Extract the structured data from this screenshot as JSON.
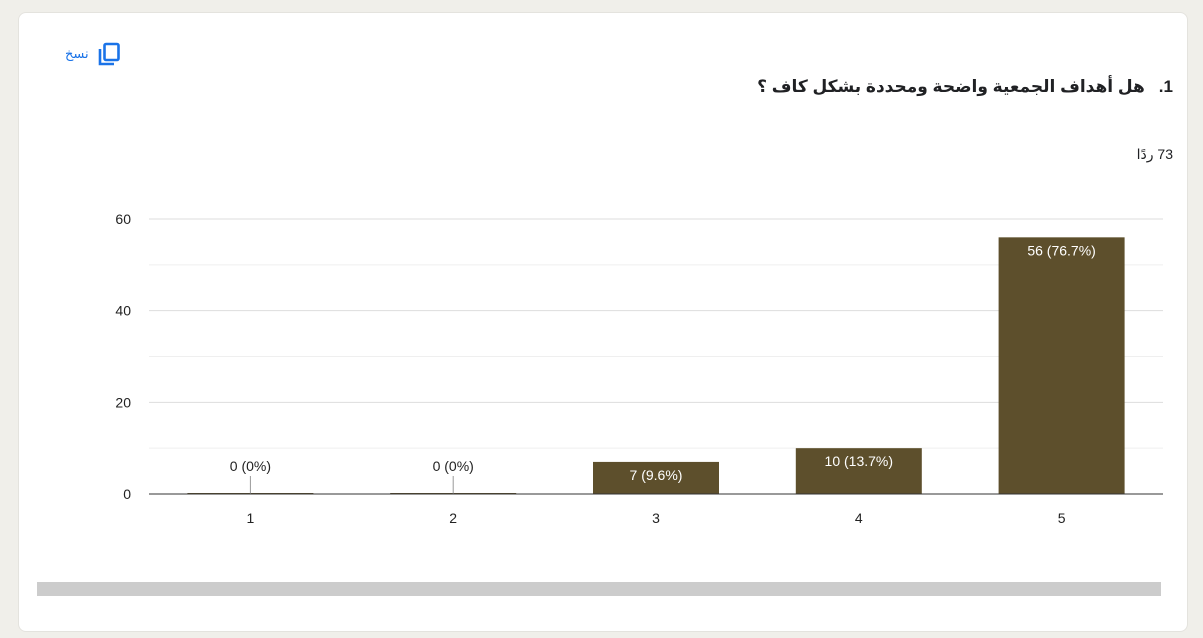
{
  "copy": {
    "label": "نسخ",
    "icon": "copy-icon",
    "color": "#1a73e8"
  },
  "question": {
    "number": "1.",
    "text": "هل أهداف الجمعية واضحة ومحددة بشكل كاف ؟"
  },
  "responses": {
    "count": "73",
    "label": "ردًا"
  },
  "chart_data": {
    "type": "bar",
    "categories": [
      "1",
      "2",
      "3",
      "4",
      "5"
    ],
    "values": [
      0,
      0,
      7,
      10,
      56
    ],
    "data_labels": [
      "0 (0%)",
      "0 (0%)",
      "7 (9.6%)",
      "10 (13.7%)",
      "56 (76.7%)"
    ],
    "y_ticks": [
      0,
      20,
      40,
      60
    ],
    "ylim": [
      0,
      60
    ],
    "grid": true,
    "bar_color": "#5d4f2c"
  }
}
